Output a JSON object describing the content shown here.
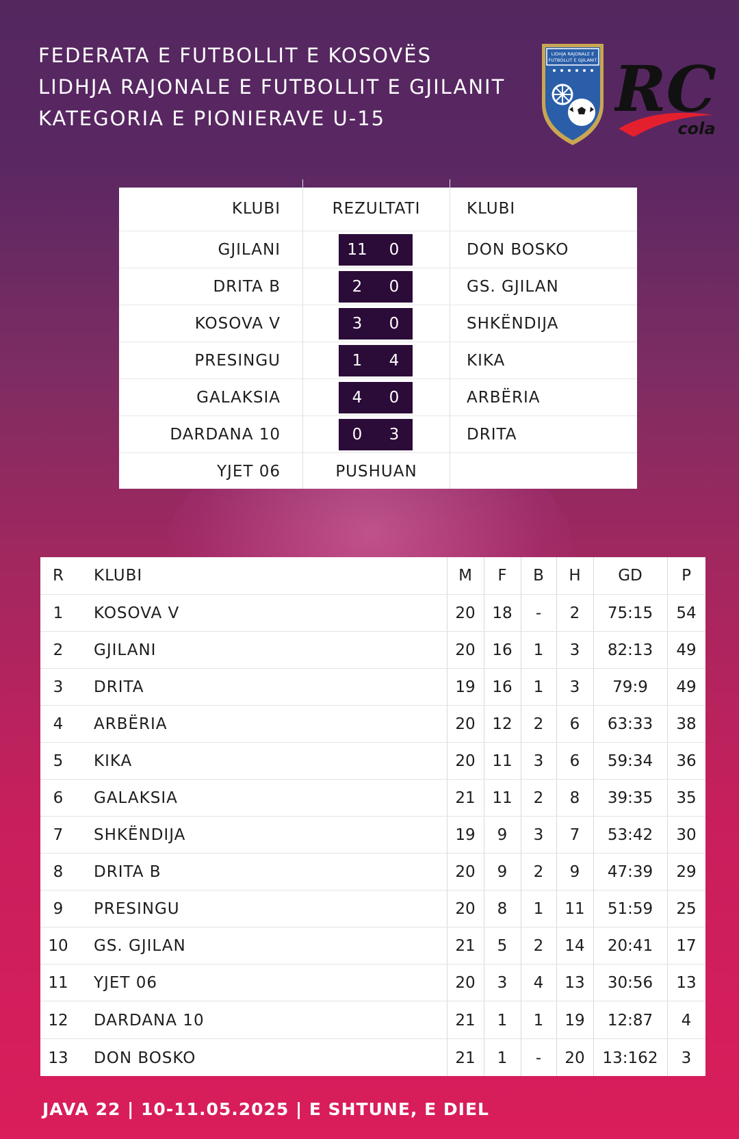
{
  "header": {
    "line1": "FEDERATA E FUTBOLLIT E KOSOVËS",
    "line2": "LIDHJA RAJONALE E FUTBOLLIT E GJILANIT",
    "line3": "KATEGORIA E PIONIERAVE U-15"
  },
  "logos": {
    "crest_text_line1": "LIDHJA RAJONALE E",
    "crest_text_line2": "FUTBOLLIT E GJILANIT",
    "sponsor_text": "RC",
    "sponsor_sub": "cola"
  },
  "results": {
    "headers": {
      "home": "KLUBI",
      "score": "REZULTATI",
      "away": "KLUBI"
    },
    "matches": [
      {
        "home": "GJILANI",
        "home_goals": "11",
        "away_goals": "0",
        "away": "DON BOSKO"
      },
      {
        "home": "DRITA B",
        "home_goals": "2",
        "away_goals": "0",
        "away": "GS. GJILAN"
      },
      {
        "home": "KOSOVA V",
        "home_goals": "3",
        "away_goals": "0",
        "away": "SHKËNDIJA"
      },
      {
        "home": "PRESINGU",
        "home_goals": "1",
        "away_goals": "4",
        "away": "KIKA"
      },
      {
        "home": "GALAKSIA",
        "home_goals": "4",
        "away_goals": "0",
        "away": "ARBËRIA"
      },
      {
        "home": "DARDANA 10",
        "home_goals": "0",
        "away_goals": "3",
        "away": "DRITA"
      }
    ],
    "bye": {
      "club": "YJET 06",
      "status": "PUSHUAN"
    }
  },
  "standings": {
    "headers": {
      "r": "R",
      "club": "KLUBI",
      "m": "M",
      "f": "F",
      "b": "B",
      "h": "H",
      "gd": "GD",
      "p": "P"
    },
    "rows": [
      {
        "r": "1",
        "club": "KOSOVA V",
        "m": "20",
        "f": "18",
        "b": "-",
        "h": "2",
        "gd": "75:15",
        "p": "54"
      },
      {
        "r": "2",
        "club": "GJILANI",
        "m": "20",
        "f": "16",
        "b": "1",
        "h": "3",
        "gd": "82:13",
        "p": "49"
      },
      {
        "r": "3",
        "club": "DRITA",
        "m": "19",
        "f": "16",
        "b": "1",
        "h": "3",
        "gd": "79:9",
        "p": "49"
      },
      {
        "r": "4",
        "club": "ARBËRIA",
        "m": "20",
        "f": "12",
        "b": "2",
        "h": "6",
        "gd": "63:33",
        "p": "38"
      },
      {
        "r": "5",
        "club": "KIKA",
        "m": "20",
        "f": "11",
        "b": "3",
        "h": "6",
        "gd": "59:34",
        "p": "36"
      },
      {
        "r": "6",
        "club": "GALAKSIA",
        "m": "21",
        "f": "11",
        "b": "2",
        "h": "8",
        "gd": "39:35",
        "p": "35"
      },
      {
        "r": "7",
        "club": "SHKËNDIJA",
        "m": "19",
        "f": "9",
        "b": "3",
        "h": "7",
        "gd": "53:42",
        "p": "30"
      },
      {
        "r": "8",
        "club": "DRITA B",
        "m": "20",
        "f": "9",
        "b": "2",
        "h": "9",
        "gd": "47:39",
        "p": "29"
      },
      {
        "r": "9",
        "club": "PRESINGU",
        "m": "20",
        "f": "8",
        "b": "1",
        "h": "11",
        "gd": "51:59",
        "p": "25"
      },
      {
        "r": "10",
        "club": "GS. GJILAN",
        "m": "21",
        "f": "5",
        "b": "2",
        "h": "14",
        "gd": "20:41",
        "p": "17"
      },
      {
        "r": "11",
        "club": "YJET 06",
        "m": "20",
        "f": "3",
        "b": "4",
        "h": "13",
        "gd": "30:56",
        "p": "13"
      },
      {
        "r": "12",
        "club": "DARDANA 10",
        "m": "21",
        "f": "1",
        "b": "1",
        "h": "19",
        "gd": "12:87",
        "p": "4"
      },
      {
        "r": "13",
        "club": "DON BOSKO",
        "m": "21",
        "f": "1",
        "b": "-",
        "h": "20",
        "gd": "13:162",
        "p": "3"
      }
    ]
  },
  "footer": {
    "text": "JAVA  22 | 10-11.05.2025 | E SHTUNE, E DIEL"
  },
  "colors": {
    "score_box": "#2b0b37",
    "background_top": "#54275f",
    "background_bottom": "#da1d5b"
  }
}
